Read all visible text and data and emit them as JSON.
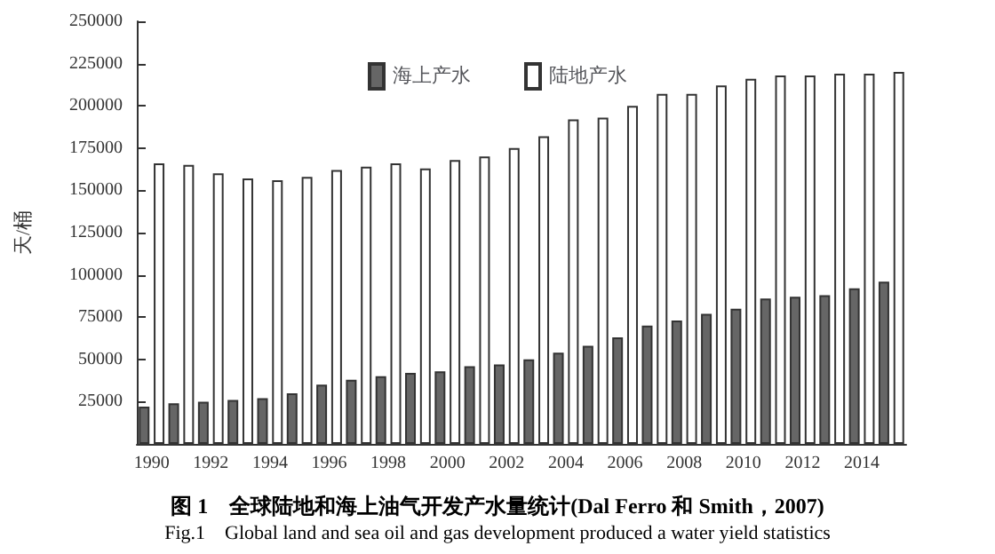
{
  "chart_data": {
    "type": "bar",
    "title": "图 1　全球陆地和海上油气开发产水量统计(Dal Ferro 和 Smith，2007)",
    "subtitle": "Fig.1　Global land and sea oil and gas development produced a water yield statistics",
    "ylabel": "天/桶",
    "categories": [
      "1990",
      null,
      "1992",
      null,
      "1994",
      null,
      "1996",
      null,
      "1998",
      null,
      "2000",
      null,
      "2002",
      null,
      "2004",
      null,
      "2006",
      null,
      "2008",
      null,
      "2010",
      null,
      "2012",
      null,
      "2014",
      null
    ],
    "series": [
      {
        "name": "海上产水",
        "color": "#666666",
        "values": [
          22000,
          24000,
          25000,
          26000,
          27000,
          30000,
          35000,
          38000,
          40000,
          42000,
          43000,
          46000,
          47000,
          50000,
          54000,
          58000,
          63000,
          70000,
          73000,
          77000,
          80000,
          86000,
          87000,
          88000,
          92000,
          96000
        ]
      },
      {
        "name": "陆地产水",
        "color": "#ffffff",
        "values": [
          166000,
          165000,
          160000,
          157000,
          156000,
          158000,
          162000,
          164000,
          166000,
          163000,
          168000,
          170000,
          175000,
          182000,
          192000,
          193000,
          200000,
          207000,
          207000,
          212000,
          216000,
          218000,
          218000,
          219000,
          219000,
          220000
        ]
      }
    ],
    "ylim": [
      0,
      250000
    ],
    "yticks": [
      25000,
      50000,
      75000,
      100000,
      125000,
      150000,
      175000,
      200000,
      225000,
      250000
    ],
    "grid": false,
    "legend": "top"
  }
}
